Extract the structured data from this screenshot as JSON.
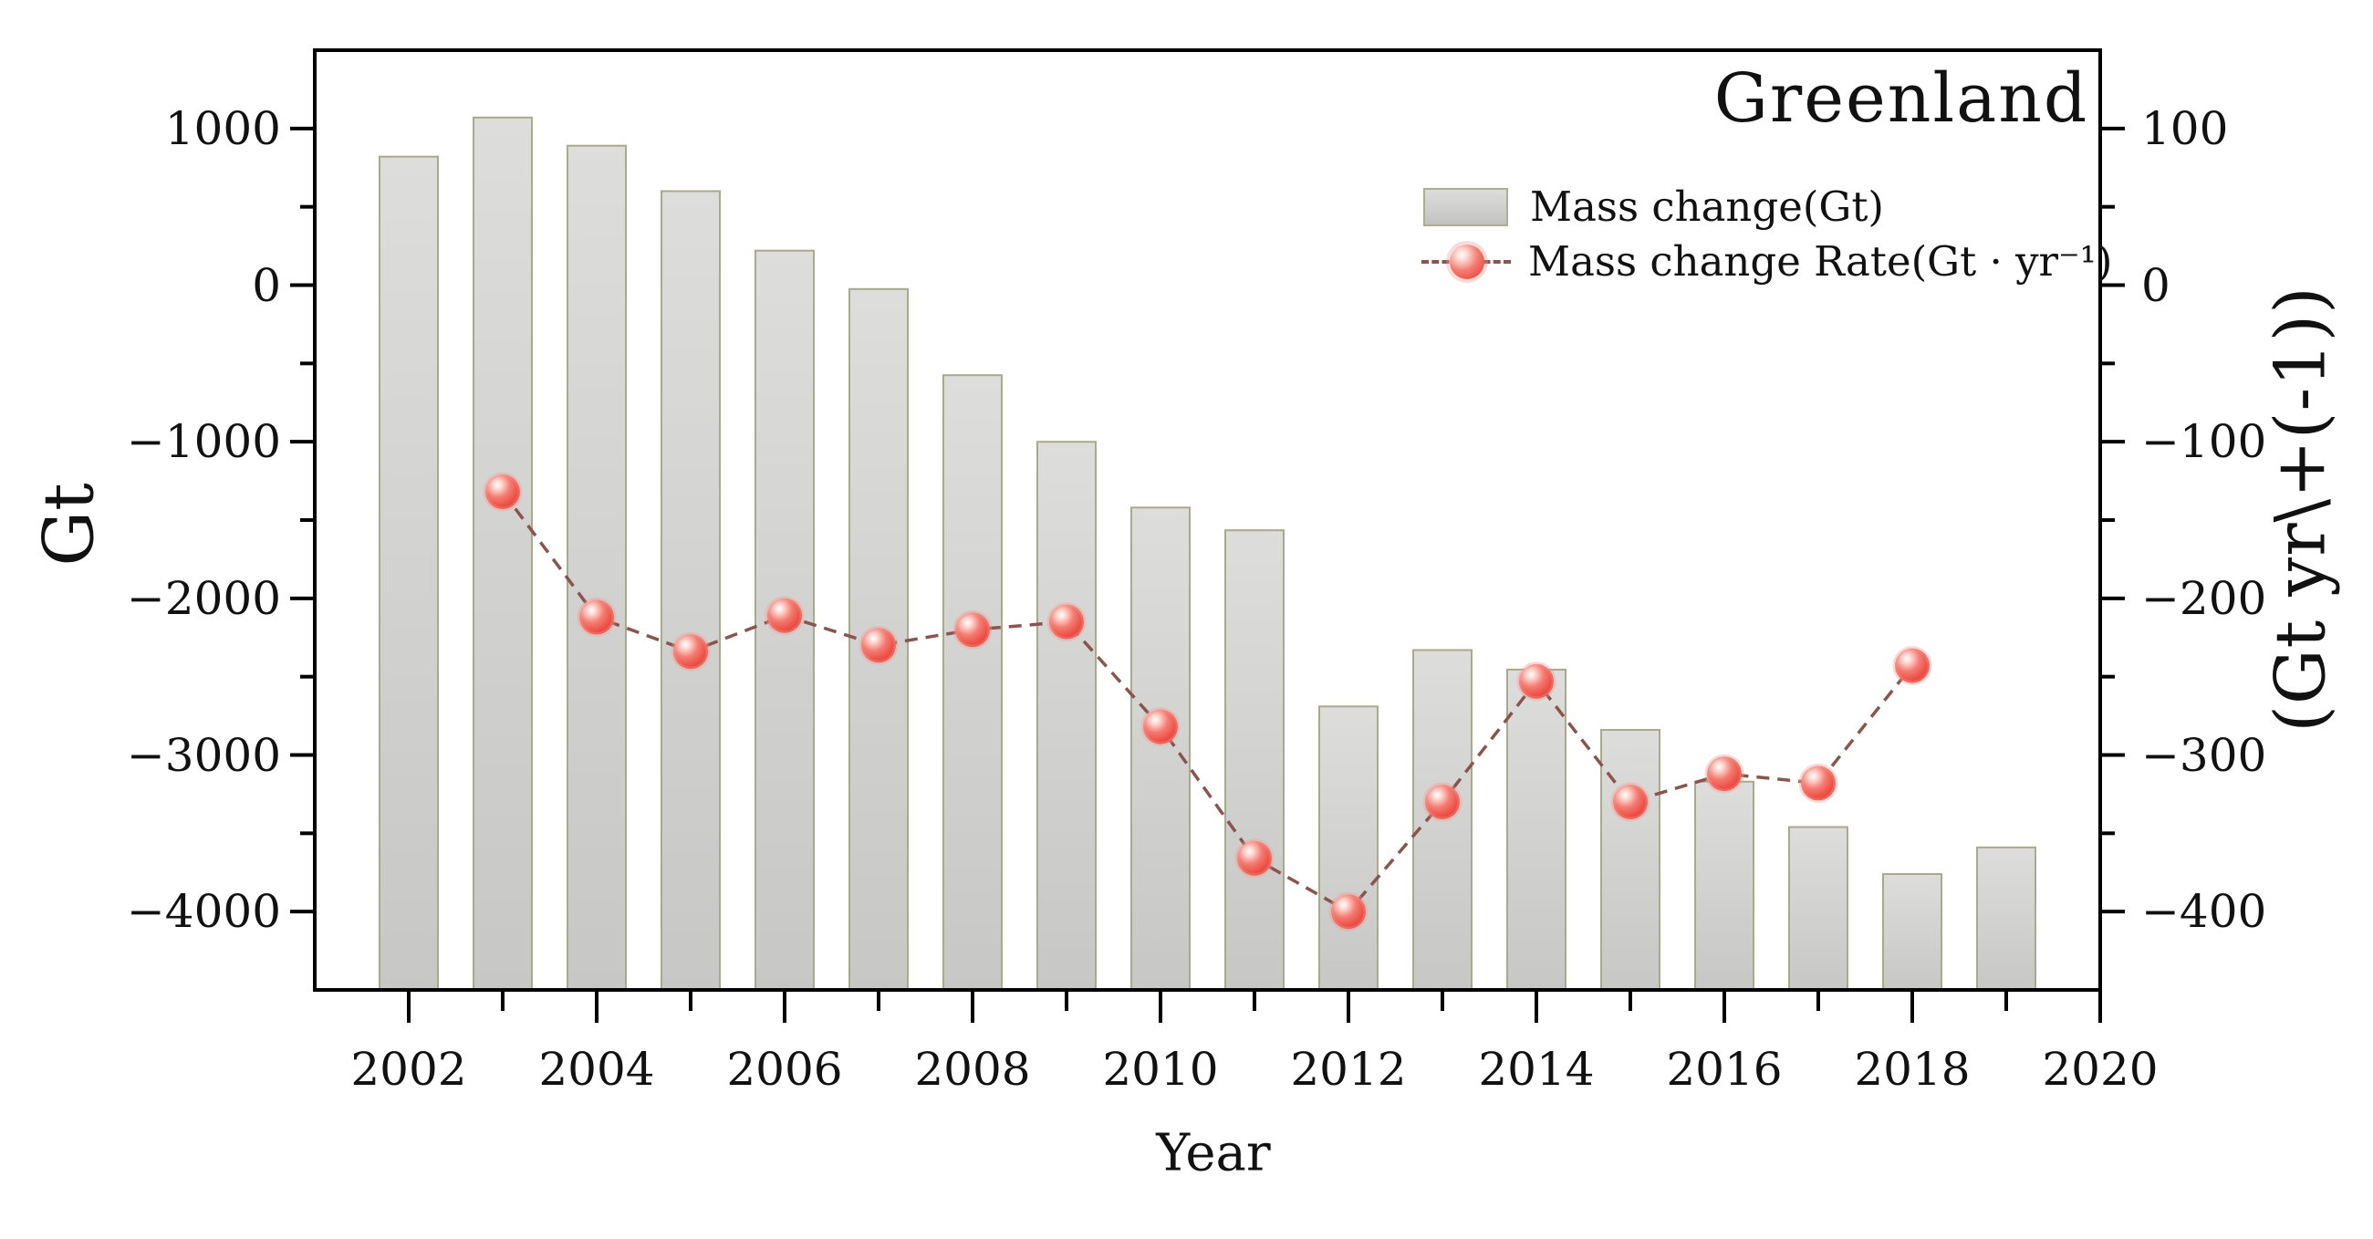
{
  "title": "Greenland",
  "colors": {
    "background": "#ffffff",
    "frame": "#000000",
    "text": "#111111",
    "bar_fill_top": "#dddddb",
    "bar_fill_bottom": "#c7c7c5",
    "bar_edge": "#a9a98b",
    "line": "#8a544e",
    "marker_core": "#ee5449",
    "marker_edge": "#e23e38",
    "marker_glow": "#f49a92",
    "marker_highlight": "#ffffff"
  },
  "legend": {
    "item_bar_label": "Mass change(Gt)",
    "item_line_label": "Mass change Rate(Gt · yr⁻¹)"
  },
  "chart_data": {
    "type": "combo",
    "title": "Greenland",
    "grid": false,
    "legend_position": "inside upper right",
    "x": {
      "label": "Year",
      "range": [
        2001,
        2020
      ],
      "major_ticks": [
        2002,
        2004,
        2006,
        2008,
        2010,
        2012,
        2014,
        2016,
        2018,
        2020
      ],
      "minor_ticks": [
        2003,
        2005,
        2007,
        2009,
        2011,
        2013,
        2015,
        2017,
        2019
      ]
    },
    "y_left": {
      "label": "Gt",
      "range": [
        -4500,
        1500
      ],
      "major_ticks": [
        1000,
        0,
        -1000,
        -2000,
        -3000,
        -4000
      ],
      "minor_ticks": [
        500,
        -500,
        -1500,
        -2500,
        -3500
      ]
    },
    "y_right": {
      "label": "(Gt yr\\+(-1))",
      "range": [
        -450,
        150
      ],
      "major_ticks": [
        100,
        0,
        -100,
        -200,
        -300,
        -400
      ],
      "minor_ticks": [
        50,
        -50,
        -150,
        -250,
        -350
      ]
    },
    "series": [
      {
        "name": "Mass change(Gt)",
        "type": "bar",
        "axis": "left",
        "x": [
          2002,
          2003,
          2004,
          2005,
          2006,
          2007,
          2008,
          2009,
          2010,
          2011,
          2012,
          2013,
          2014,
          2015,
          2016,
          2017,
          2018,
          2019
        ],
        "values": [
          820,
          1070,
          890,
          600,
          220,
          -25,
          -575,
          -1000,
          -1420,
          -1565,
          -2690,
          -2330,
          -2455,
          -2840,
          -3170,
          -3460,
          -3760,
          -3590
        ]
      },
      {
        "name": "Mass change Rate(Gt · yr⁻¹)",
        "type": "line",
        "axis": "right",
        "x": [
          2003,
          2004,
          2005,
          2006,
          2007,
          2008,
          2009,
          2010,
          2011,
          2012,
          2013,
          2014,
          2015,
          2016,
          2017,
          2018
        ],
        "values": [
          -132,
          -212,
          -234,
          -211,
          -230,
          -220,
          -215,
          -282,
          -366,
          -400,
          -330,
          -253,
          -330,
          -312,
          -318,
          -243
        ]
      }
    ]
  }
}
